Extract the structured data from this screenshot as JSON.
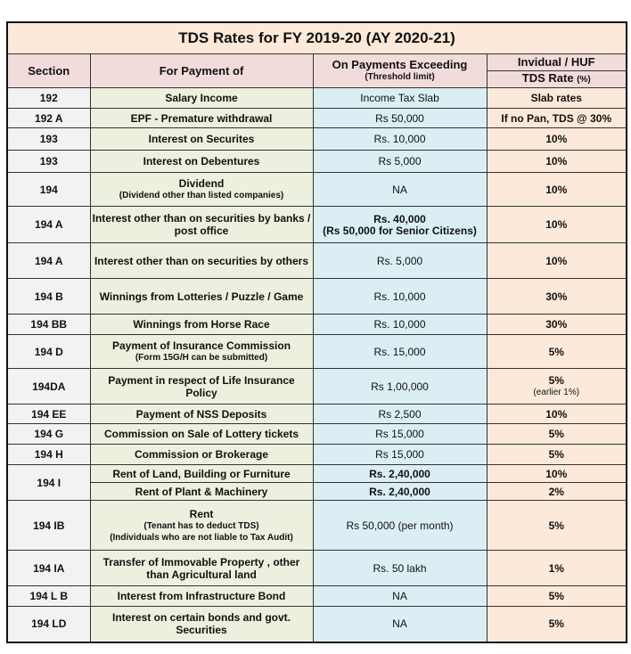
{
  "title": "TDS Rates for FY 2019-20 (AY 2020-21)",
  "headers": {
    "section": "Section",
    "payment": "For Payment of",
    "threshold": "On Payments Exceeding",
    "threshold_sub": "(Threshold limit)",
    "rate_group": "Invidual / HUF",
    "rate": "TDS Rate",
    "rate_unit": "(%)"
  },
  "colors": {
    "section": "#f2f2f2",
    "payment": "#ebf1de",
    "threshold": "#dbeef4",
    "rate": "#fde9d9",
    "header": "#f2dcdb"
  },
  "rows": [
    {
      "section": "192",
      "payment": "Salary Income",
      "threshold": "Income Tax Slab",
      "rate": "Slab rates"
    },
    {
      "section": "192 A",
      "payment": "EPF - Premature withdrawal",
      "threshold": "Rs 50,000",
      "rate": "If no Pan, TDS @ 30%"
    },
    {
      "section": "193",
      "payment": "Interest on Securites",
      "threshold": "Rs. 10,000",
      "rate": "10%"
    },
    {
      "section": "193",
      "payment": "Interest on Debentures",
      "threshold": "Rs 5,000",
      "rate": "10%"
    },
    {
      "section": "194",
      "payment": "Dividend",
      "payment_sub": "(Dividend other than listed companies)",
      "threshold": "NA",
      "rate": "10%"
    },
    {
      "section": "194 A",
      "payment": "Interest other than on securities by banks / post office",
      "threshold": "Rs. 40,000",
      "threshold_sub": "(Rs 50,000 for Senior Citizens)",
      "threshold_bold": true,
      "rate": "10%"
    },
    {
      "section": "194 A",
      "payment": "Interest other than on securities by others",
      "threshold": "Rs. 5,000",
      "rate": "10%"
    },
    {
      "section": "194 B",
      "payment": "Winnings from Lotteries / Puzzle / Game",
      "threshold": "Rs. 10,000",
      "rate": "30%"
    },
    {
      "section": "194 BB",
      "payment": "Winnings from Horse Race",
      "threshold": "Rs. 10,000",
      "rate": "30%"
    },
    {
      "section": "194 D",
      "payment": "Payment of Insurance Commission",
      "payment_sub": "(Form 15G/H can be submitted)",
      "threshold": "Rs. 15,000",
      "rate": "5%"
    },
    {
      "section": "194DA",
      "payment": "Payment in respect of Life Insurance Policy",
      "threshold": "Rs 1,00,000",
      "rate": "5%",
      "rate_sub": "(earlier 1%)"
    },
    {
      "section": "194 EE",
      "payment": "Payment of NSS Deposits",
      "threshold": "Rs 2,500",
      "rate": "10%"
    },
    {
      "section": "194 G",
      "payment": "Commission on Sale of Lottery tickets",
      "threshold": "Rs 15,000",
      "rate": "5%"
    },
    {
      "section": "194 H",
      "payment": "Commission or Brokerage",
      "threshold": "Rs 15,000",
      "rate": "5%"
    },
    {
      "section": "194 I",
      "rowspan": 2,
      "payment": "Rent of Land, Building or Furniture",
      "threshold": "Rs. 2,40,000",
      "threshold_bold": true,
      "rate": "10%"
    },
    {
      "payment": "Rent of Plant & Machinery",
      "threshold": "Rs. 2,40,000",
      "threshold_bold": true,
      "rate": "2%"
    },
    {
      "section": "194 IB",
      "payment": "Rent",
      "payment_sub": "(Tenant has to deduct TDS)",
      "payment_sub2": "(Individuals who are not liable to Tax Audit)",
      "threshold": "Rs 50,000 (per month)",
      "rate": "5%"
    },
    {
      "section": "194 IA",
      "payment": "Transfer of Immovable Property , other than Agricultural land",
      "threshold": "Rs. 50 lakh",
      "rate": "1%"
    },
    {
      "section": "194 L B",
      "payment": "Interest from Infrastructure Bond",
      "threshold": "NA",
      "rate": "5%"
    },
    {
      "section": "194 LD",
      "payment": "Interest on certain bonds and govt. Securities",
      "threshold": "NA",
      "rate": "5%"
    }
  ]
}
